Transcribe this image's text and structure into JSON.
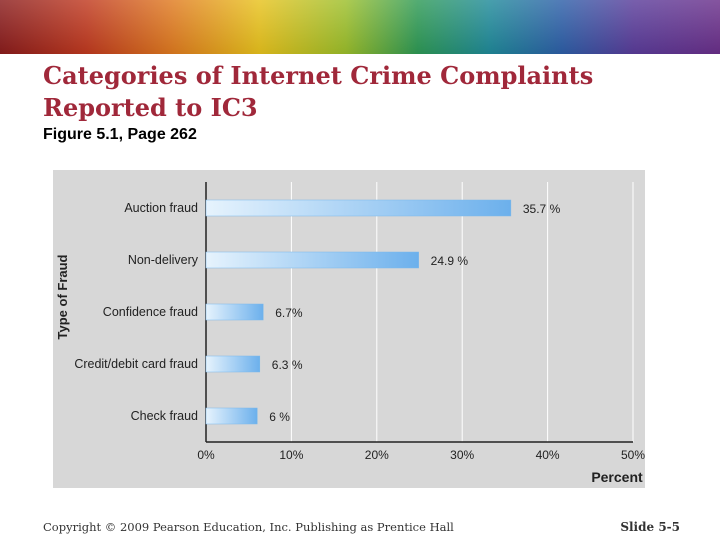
{
  "slide": {
    "title_line1": "Categories of Internet Crime Complaints",
    "title_line2": "Reported to IC3",
    "subtitle": "Figure 5.1, Page 262",
    "copyright": "Copyright © 2009 Pearson Education, Inc. Publishing as Prentice Hall",
    "slide_number": "Slide 5-5"
  },
  "colors": {
    "title": "#a0283a",
    "plot_background": "#d7d7d7",
    "bar_light": "#e6f3fd",
    "bar_dark": "#6cb0ec"
  },
  "chart_data": {
    "type": "bar",
    "orientation": "horizontal",
    "ylabel": "Type of Fraud",
    "xlabel": "Percent",
    "categories": [
      "Auction fraud",
      "Non-delivery",
      "Confidence fraud",
      "Credit/debit card fraud",
      "Check fraud"
    ],
    "values": [
      35.7,
      24.9,
      6.7,
      6.3,
      6
    ],
    "value_labels": [
      "35.7 %",
      "24.9 %",
      "6.7%",
      "6.3 %",
      "6 %"
    ],
    "xlim": [
      0,
      50
    ],
    "ticks": [
      0,
      10,
      20,
      30,
      40,
      50
    ],
    "tick_labels": [
      "0%",
      "10%",
      "20%",
      "30%",
      "40%",
      "50%"
    ],
    "grid": true,
    "legend": "none"
  }
}
